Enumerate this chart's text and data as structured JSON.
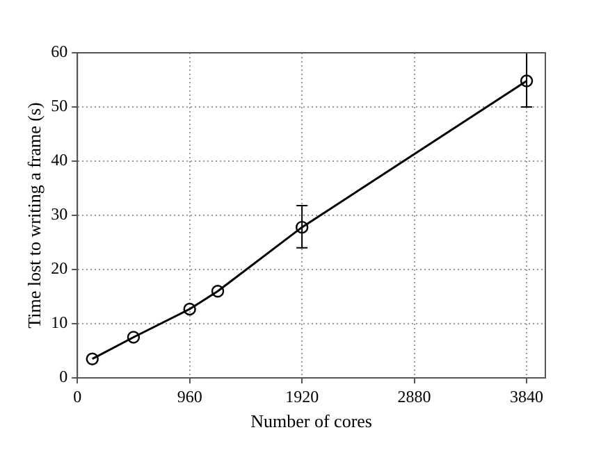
{
  "chart_data": {
    "type": "line",
    "xlabel": "Number of cores",
    "ylabel": "Time lost to writing a frame (s)",
    "x": [
      128,
      480,
      960,
      1200,
      1920,
      3840
    ],
    "series": [
      {
        "color": "#000000",
        "values": [
          3.5,
          7.5,
          12.7,
          16,
          27.8,
          54.8
        ],
        "errors": [
          null,
          null,
          null,
          null,
          [
            24,
            31.8
          ],
          [
            50,
            60
          ]
        ]
      }
    ],
    "xlim": [
      0,
      4000
    ],
    "xticks": [
      0,
      960,
      1920,
      2880,
      3840
    ],
    "ylim": [
      0,
      60
    ],
    "yticks": [
      0,
      10,
      20,
      30,
      40,
      50,
      60
    ],
    "grid": true,
    "marker": "circle",
    "line_style": "solid",
    "legend": false
  }
}
